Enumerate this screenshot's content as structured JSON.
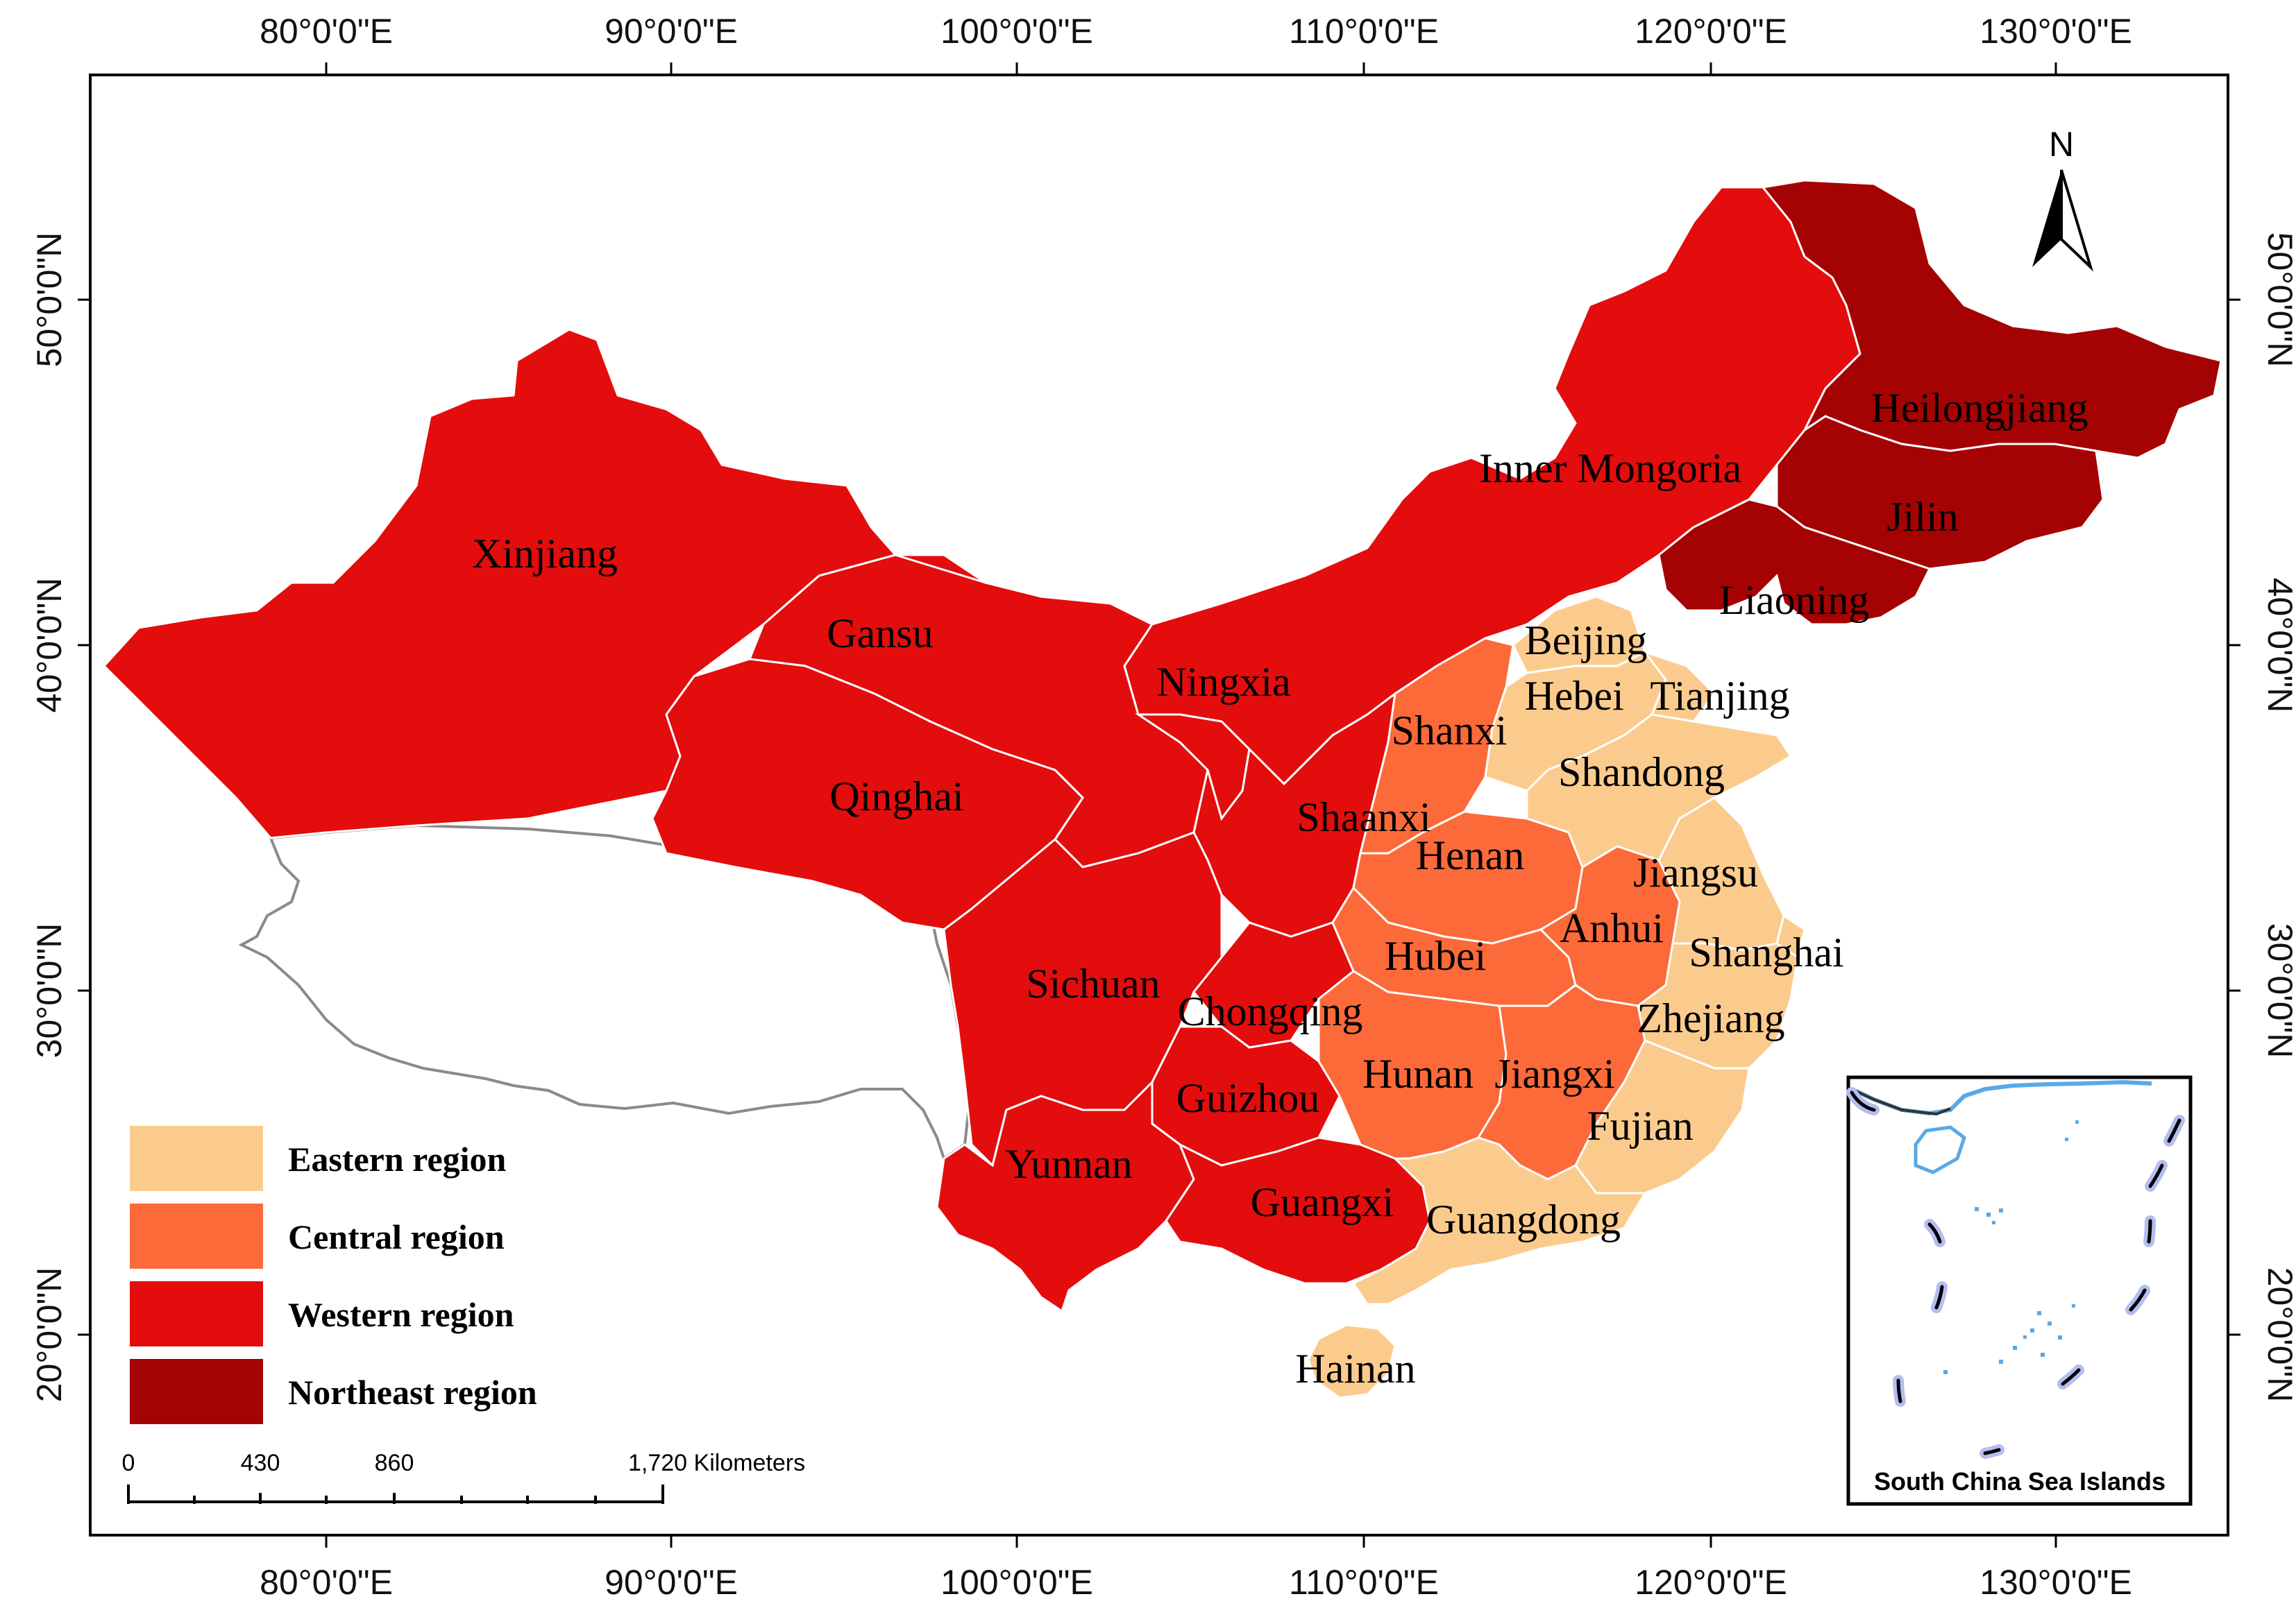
{
  "map": {
    "longitude_ticks": [
      "80°0'0\"E",
      "90°0'0\"E",
      "100°0'0\"E",
      "110°0'0\"E",
      "120°0'0\"E",
      "130°0'0\"E"
    ],
    "latitude_ticks": [
      "50°0'0\"N",
      "40°0'0\"N",
      "30°0'0\"N",
      "20°0'0\"N"
    ],
    "north_arrow": "N",
    "colors": {
      "eastern": "#FBCB8E",
      "central": "#FC6A3A",
      "western": "#E30D0D",
      "northeast": "#A50303",
      "border": "#ffffff",
      "unlabeled_outline": "#8a8a8a"
    },
    "legend": [
      {
        "label": "Eastern region",
        "color": "#FBCB8E"
      },
      {
        "label": "Central region",
        "color": "#FC6A3A"
      },
      {
        "label": "Western region",
        "color": "#E30D0D"
      },
      {
        "label": "Northeast region",
        "color": "#A50303"
      }
    ],
    "provinces": {
      "heilongjiang": "Heilongjiang",
      "jilin": "Jilin",
      "liaoning": "Liaoning",
      "inner_mongolia": "Inner Mongoria",
      "xinjiang": "Xinjiang",
      "gansu": "Gansu",
      "ningxia": "Ningxia",
      "qinghai": "Qinghai",
      "shaanxi": "Shaanxi",
      "shanxi": "Shanxi",
      "beijing": "Beijing",
      "hebei": "Hebei",
      "tianjing": "Tianjing",
      "shandong": "Shandong",
      "henan": "Henan",
      "jiangsu": "Jiangsu",
      "anhui": "Anhui",
      "shanghai": "Shanghai",
      "hubei": "Hubei",
      "sichuan": "Sichuan",
      "chongqing": "Chongqing",
      "zhejiang": "Zhejiang",
      "hunan": "Hunan",
      "jiangxi": "Jiangxi",
      "guizhou": "Guizhou",
      "fujian": "Fujian",
      "yunnan": "Yunnan",
      "guangxi": "Guangxi",
      "guangdong": "Guangdong",
      "hainan": "Hainan"
    },
    "scale_bar": {
      "labels": [
        "0",
        "430",
        "860",
        "1,720 Kilometers"
      ]
    },
    "inset": {
      "title": "South China Sea Islands"
    }
  }
}
